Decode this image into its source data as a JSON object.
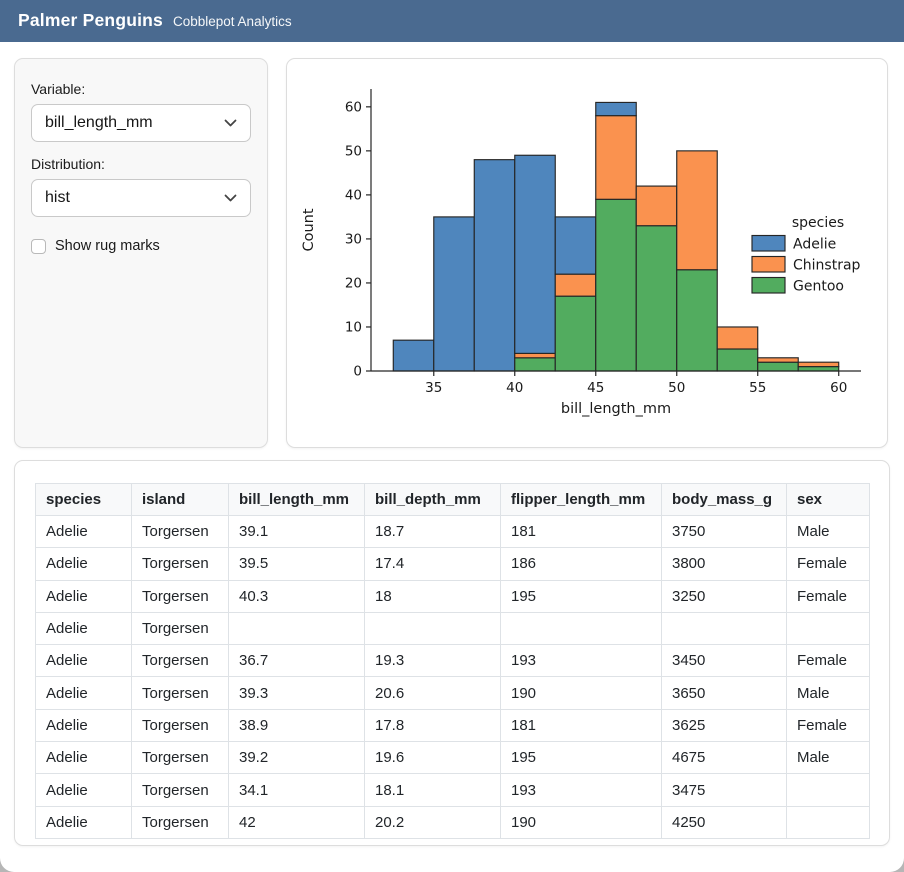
{
  "header": {
    "title": "Palmer Penguins",
    "subtitle": "Cobblepot Analytics",
    "bg_color": "#4a6a90"
  },
  "sidebar": {
    "variable_label": "Variable:",
    "variable_value": "bill_length_mm",
    "distribution_label": "Distribution:",
    "distribution_value": "hist",
    "rug_checkbox_label": "Show rug marks",
    "rug_checked": false,
    "icons": [
      "chevron-down-icon",
      "chevron-down-icon"
    ]
  },
  "chart_data": {
    "type": "bar",
    "subtype": "stacked-histogram",
    "xlabel": "bill_length_mm",
    "ylabel": "Count",
    "bin_edges": [
      32.5,
      35,
      37.5,
      40,
      42.5,
      45,
      47.5,
      50,
      52.5,
      55,
      57.5,
      60
    ],
    "series": [
      {
        "name": "Adelie",
        "color": "#4f86bd",
        "values": [
          7,
          35,
          48,
          45,
          13,
          3,
          0,
          0,
          0,
          0,
          0
        ]
      },
      {
        "name": "Chinstrap",
        "color": "#fa924f",
        "values": [
          0,
          0,
          0,
          1,
          5,
          19,
          9,
          27,
          5,
          1,
          1
        ]
      },
      {
        "name": "Gentoo",
        "color": "#52ac5f",
        "values": [
          0,
          0,
          0,
          3,
          17,
          39,
          33,
          23,
          5,
          2,
          1
        ]
      }
    ],
    "stack_order_bottom_to_top": [
      "Gentoo",
      "Chinstrap",
      "Adelie"
    ],
    "bin_totals": [
      7,
      35,
      48,
      49,
      35,
      61,
      42,
      50,
      10,
      3,
      2
    ],
    "xticks": [
      35,
      40,
      45,
      50,
      55,
      60
    ],
    "yticks": [
      0,
      10,
      20,
      30,
      40,
      50,
      60
    ],
    "xlim": [
      31.125,
      61.375
    ],
    "ylim": [
      0,
      64.05
    ],
    "grid": false,
    "legend_title": "species",
    "legend_entries": [
      "Adelie",
      "Chinstrap",
      "Gentoo"
    ],
    "legend_position": "right",
    "bar_edge_color": "#262626",
    "text_color": "#1a1a1a"
  },
  "table": {
    "columns": [
      "species",
      "island",
      "bill_length_mm",
      "bill_depth_mm",
      "flipper_length_mm",
      "body_mass_g",
      "sex"
    ],
    "rows": [
      [
        "Adelie",
        "Torgersen",
        "39.1",
        "18.7",
        "181",
        "3750",
        "Male"
      ],
      [
        "Adelie",
        "Torgersen",
        "39.5",
        "17.4",
        "186",
        "3800",
        "Female"
      ],
      [
        "Adelie",
        "Torgersen",
        "40.3",
        "18",
        "195",
        "3250",
        "Female"
      ],
      [
        "Adelie",
        "Torgersen",
        "",
        "",
        "",
        "",
        ""
      ],
      [
        "Adelie",
        "Torgersen",
        "36.7",
        "19.3",
        "193",
        "3450",
        "Female"
      ],
      [
        "Adelie",
        "Torgersen",
        "39.3",
        "20.6",
        "190",
        "3650",
        "Male"
      ],
      [
        "Adelie",
        "Torgersen",
        "38.9",
        "17.8",
        "181",
        "3625",
        "Female"
      ],
      [
        "Adelie",
        "Torgersen",
        "39.2",
        "19.6",
        "195",
        "4675",
        "Male"
      ],
      [
        "Adelie",
        "Torgersen",
        "34.1",
        "18.1",
        "193",
        "3475",
        ""
      ],
      [
        "Adelie",
        "Torgersen",
        "42",
        "20.2",
        "190",
        "4250",
        ""
      ]
    ]
  }
}
